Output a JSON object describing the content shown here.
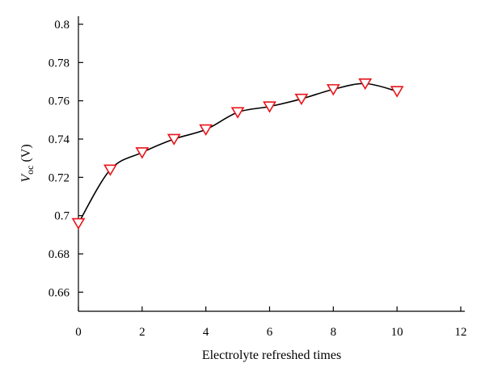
{
  "chart_data": {
    "type": "scatter",
    "title": "",
    "xlabel": "Electrolyte refreshed times",
    "ylabel": {
      "main": "V",
      "sub": "oc",
      "unit": " (V)"
    },
    "xlim": [
      0,
      12
    ],
    "ylim": [
      0.65,
      0.8
    ],
    "xticks": [
      0,
      2,
      4,
      6,
      8,
      10,
      12
    ],
    "xtick_labels": [
      "0",
      "2",
      "4",
      "6",
      "8",
      "10",
      "12"
    ],
    "yticks": [
      0.66,
      0.68,
      0.7,
      0.72,
      0.74,
      0.76,
      0.78,
      0.8
    ],
    "ytick_labels": [
      "0.66",
      "0.68",
      "0.7",
      "0.72",
      "0.74",
      "0.76",
      "0.78",
      "0.8"
    ],
    "grid": false,
    "marker": "triangle-down",
    "marker_color": "#e8141b",
    "line_color": "#000000",
    "series": [
      {
        "x": [
          0,
          1,
          2,
          3,
          4,
          5,
          6,
          7,
          8,
          9,
          10
        ],
        "y": [
          0.696,
          0.724,
          0.733,
          0.74,
          0.745,
          0.754,
          0.757,
          0.761,
          0.766,
          0.769,
          0.765
        ]
      }
    ]
  }
}
